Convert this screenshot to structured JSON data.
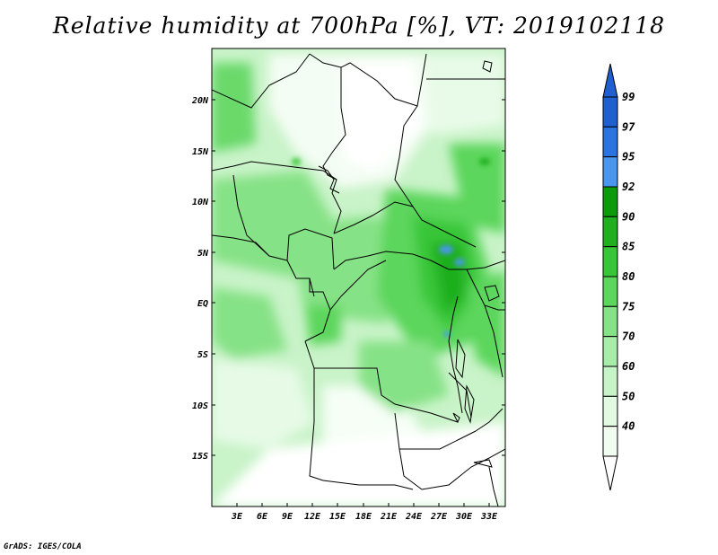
{
  "title": "Relative humidity at 700hPa [%], VT: 2019102118",
  "credit": "GrADS: IGES/COLA",
  "map": {
    "lat_ticks": [
      "20N",
      "15N",
      "10N",
      "5N",
      "EQ",
      "5S",
      "10S",
      "15S"
    ],
    "lon_ticks": [
      "3E",
      "6E",
      "9E",
      "12E",
      "15E",
      "18E",
      "21E",
      "24E",
      "27E",
      "30E",
      "33E"
    ]
  },
  "colorbar": {
    "levels": [
      {
        "label": "99",
        "color": "#1f5fd0"
      },
      {
        "label": "97",
        "color": "#2a73e0"
      },
      {
        "label": "95",
        "color": "#4a96ee"
      },
      {
        "label": "92",
        "color": "#0a9a0a"
      },
      {
        "label": "90",
        "color": "#1faf1f"
      },
      {
        "label": "85",
        "color": "#37c637"
      },
      {
        "label": "80",
        "color": "#5cd65c"
      },
      {
        "label": "75",
        "color": "#86e286"
      },
      {
        "label": "70",
        "color": "#a8ecaa"
      },
      {
        "label": "60",
        "color": "#c7f4c7"
      },
      {
        "label": "50",
        "color": "#e2fae2"
      },
      {
        "label": "40",
        "color": "#f2fdf2"
      }
    ],
    "top_color": "#1f5fd0",
    "bottom_color": "#ffffff"
  }
}
